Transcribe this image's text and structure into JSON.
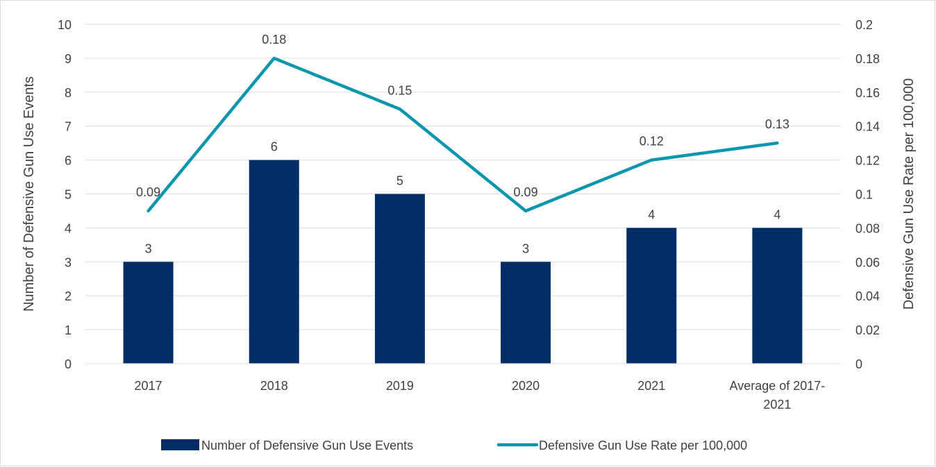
{
  "chart_data": {
    "type": "bar",
    "title": "",
    "categories": [
      "2017",
      "2018",
      "2019",
      "2020",
      "2021",
      "Average of 2017-2021"
    ],
    "category_lines": [
      [
        "2017"
      ],
      [
        "2018"
      ],
      [
        "2019"
      ],
      [
        "2020"
      ],
      [
        "2021"
      ],
      [
        "Average of 2017-",
        "2021"
      ]
    ],
    "series": [
      {
        "name": "Number of Defensive Gun Use Events",
        "kind": "bar",
        "axis": "left",
        "color": "#002D66",
        "values": [
          3,
          6,
          5,
          3,
          4,
          4
        ],
        "data_labels": [
          "3",
          "6",
          "5",
          "3",
          "4",
          "4"
        ]
      },
      {
        "name": "Defensive Gun Use Rate per 100,000",
        "kind": "line",
        "axis": "right",
        "color": "#0B96AE",
        "values": [
          0.09,
          0.18,
          0.15,
          0.09,
          0.12,
          0.13
        ],
        "data_labels": [
          "0.09",
          "0.18",
          "0.15",
          "0.09",
          "0.12",
          "0.13"
        ]
      }
    ],
    "y_left": {
      "label": "Number of Defensive Gun Use Events",
      "min": 0,
      "max": 10,
      "step": 1,
      "ticks": [
        "0",
        "1",
        "2",
        "3",
        "4",
        "5",
        "6",
        "7",
        "8",
        "9",
        "10"
      ]
    },
    "y_right": {
      "label": "Defensive Gun Use Rate per 100,000",
      "min": 0,
      "max": 0.2,
      "step": 0.02,
      "ticks": [
        "0",
        "0.02",
        "0.04",
        "0.06",
        "0.08",
        "0.1",
        "0.12",
        "0.14",
        "0.16",
        "0.18",
        "0.2"
      ]
    },
    "grid": true,
    "legend_position": "bottom",
    "gridline_color": "#D9D9D9",
    "text_color": "#404040"
  }
}
